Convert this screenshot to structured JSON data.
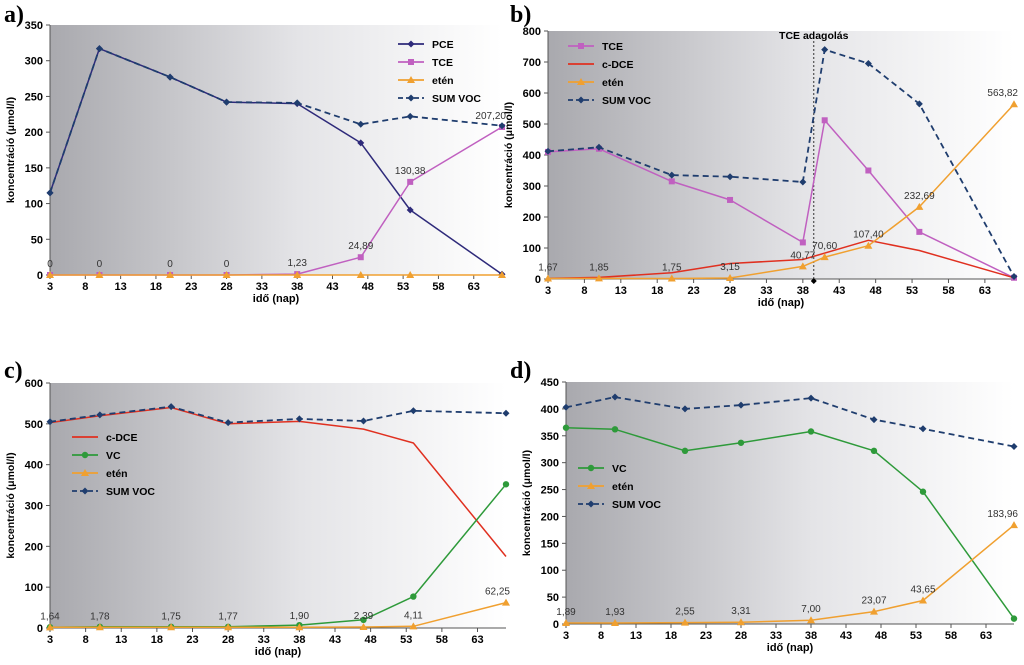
{
  "chart_data": [
    {
      "panel": "a)",
      "type": "line",
      "x": [
        3,
        10,
        20,
        28,
        38,
        47,
        54,
        67
      ],
      "xticks": [
        3,
        8,
        13,
        18,
        23,
        28,
        33,
        38,
        43,
        48,
        53,
        58,
        63
      ],
      "ylim": [
        0,
        350
      ],
      "yticks": [
        0,
        50,
        100,
        150,
        200,
        250,
        300,
        350
      ],
      "xlabel": "idő (nap)",
      "ylabel": "koncentráció (μmol/l)",
      "legend_pos": "top-right",
      "series": [
        {
          "name": "PCE",
          "color": "#2e2a7a",
          "marker": "diamond",
          "dash": false,
          "values": [
            115,
            317,
            277,
            242,
            240,
            185,
            91,
            1
          ]
        },
        {
          "name": "TCE",
          "color": "#c060c0",
          "marker": "square",
          "dash": false,
          "values": [
            0,
            0,
            0,
            0,
            1.23,
            24.89,
            130.38,
            207.2
          ]
        },
        {
          "name": "etén",
          "color": "#f0a030",
          "marker": "triangle",
          "dash": false,
          "values": [
            0,
            0,
            0,
            0,
            0,
            0,
            0,
            0
          ]
        },
        {
          "name": "SUM VOC",
          "color": "#1f3d6e",
          "marker": "diamond",
          "dash": true,
          "values": [
            115,
            317,
            277,
            242,
            241,
            211,
            222,
            209
          ]
        }
      ],
      "labels": [
        {
          "x": 3,
          "y": 0,
          "text": "0"
        },
        {
          "x": 10,
          "y": 0,
          "text": "0"
        },
        {
          "x": 20,
          "y": 0,
          "text": "0"
        },
        {
          "x": 28,
          "y": 0,
          "text": "0"
        },
        {
          "x": 38,
          "y": 1.23,
          "text": "1,23"
        },
        {
          "x": 47,
          "y": 24.89,
          "text": "24,89"
        },
        {
          "x": 54,
          "y": 130.38,
          "text": "130,38"
        },
        {
          "x": 67,
          "y": 207.2,
          "text": "207,20"
        }
      ]
    },
    {
      "panel": "b)",
      "type": "line",
      "x": [
        3,
        10,
        20,
        28,
        38,
        41,
        47,
        54,
        67
      ],
      "xticks": [
        3,
        8,
        13,
        18,
        23,
        28,
        33,
        38,
        43,
        48,
        53,
        58,
        63
      ],
      "ylim": [
        0,
        800
      ],
      "yticks": [
        0,
        100,
        200,
        300,
        400,
        500,
        600,
        700,
        800
      ],
      "xlabel": "idő (nap)",
      "ylabel": "koncentráció (μmol/l)",
      "legend_pos": "top-left",
      "annotation": {
        "text": "TCE adagolás",
        "x": 39.5
      },
      "series": [
        {
          "name": "TCE",
          "color": "#c060c0",
          "marker": "square",
          "dash": false,
          "x": [
            3,
            10,
            20,
            28,
            38,
            41,
            47,
            54,
            67
          ],
          "values": [
            410,
            420,
            315,
            255,
            118,
            512,
            350,
            152,
            4
          ]
        },
        {
          "name": "c-DCE",
          "color": "#e03020",
          "marker": "none",
          "dash": false,
          "x": [
            3,
            10,
            20,
            28,
            38,
            47,
            54,
            67
          ],
          "values": [
            2,
            5,
            20,
            50,
            63,
            125,
            92,
            4
          ]
        },
        {
          "name": "etén",
          "color": "#f0a030",
          "marker": "triangle",
          "dash": false,
          "x": [
            3,
            10,
            20,
            28,
            38,
            41,
            47,
            54,
            67
          ],
          "values": [
            1.67,
            1.85,
            1.75,
            3.15,
            40.77,
            70.6,
            107.4,
            232.69,
            563.82
          ]
        },
        {
          "name": "SUM VOC",
          "color": "#1f3d6e",
          "marker": "diamond",
          "dash": true,
          "x": [
            3,
            10,
            20,
            28,
            38,
            41,
            47,
            54,
            67
          ],
          "values": [
            412,
            425,
            335,
            330,
            313,
            740,
            695,
            565,
            8
          ]
        }
      ],
      "labels": [
        {
          "x": 3,
          "y": 1.67,
          "text": "1,67"
        },
        {
          "x": 10,
          "y": 1.85,
          "text": "1,85"
        },
        {
          "x": 20,
          "y": 1.75,
          "text": "1,75"
        },
        {
          "x": 28,
          "y": 3.15,
          "text": "3,15"
        },
        {
          "x": 38,
          "y": 40.77,
          "text": "40,77"
        },
        {
          "x": 41,
          "y": 70.6,
          "text": "70,60"
        },
        {
          "x": 47,
          "y": 107.4,
          "text": "107,40"
        },
        {
          "x": 54,
          "y": 232.69,
          "text": "232,69"
        },
        {
          "x": 67,
          "y": 563.82,
          "text": "563,82"
        }
      ]
    },
    {
      "panel": "c)",
      "type": "line",
      "x": [
        3,
        10,
        20,
        28,
        38,
        47,
        54,
        67
      ],
      "xticks": [
        3,
        8,
        13,
        18,
        23,
        28,
        33,
        38,
        43,
        48,
        53,
        58,
        63
      ],
      "ylim": [
        0,
        600
      ],
      "yticks": [
        0,
        100,
        200,
        300,
        400,
        500,
        600
      ],
      "xlabel": "idő (nap)",
      "ylabel": "koncentráció (μmol/l)",
      "legend_pos": "middle-left",
      "series": [
        {
          "name": "c-DCE",
          "color": "#e03020",
          "marker": "none",
          "dash": false,
          "values": [
            503,
            520,
            540,
            500,
            506,
            487,
            453,
            175
          ]
        },
        {
          "name": "VC",
          "color": "#2e9a3a",
          "marker": "circle",
          "dash": false,
          "values": [
            2,
            3,
            3,
            3,
            7,
            20,
            77,
            352
          ]
        },
        {
          "name": "etén",
          "color": "#f0a030",
          "marker": "triangle",
          "dash": false,
          "values": [
            1.64,
            1.78,
            1.75,
            1.77,
            1.9,
            2.39,
            4.11,
            62.25
          ]
        },
        {
          "name": "SUM VOC",
          "color": "#1f3d6e",
          "marker": "diamond",
          "dash": true,
          "values": [
            505,
            522,
            542,
            503,
            512,
            507,
            532,
            526
          ]
        }
      ],
      "labels": [
        {
          "x": 3,
          "y": 1.64,
          "text": "1,64"
        },
        {
          "x": 10,
          "y": 1.78,
          "text": "1,78"
        },
        {
          "x": 20,
          "y": 1.75,
          "text": "1,75"
        },
        {
          "x": 28,
          "y": 1.77,
          "text": "1,77"
        },
        {
          "x": 38,
          "y": 1.9,
          "text": "1,90"
        },
        {
          "x": 47,
          "y": 2.39,
          "text": "2,39"
        },
        {
          "x": 54,
          "y": 4.11,
          "text": "4,11"
        },
        {
          "x": 67,
          "y": 62.25,
          "text": "62,25"
        }
      ]
    },
    {
      "panel": "d)",
      "type": "line",
      "x": [
        3,
        10,
        20,
        28,
        38,
        47,
        54,
        67
      ],
      "xticks": [
        3,
        8,
        13,
        18,
        23,
        28,
        33,
        38,
        43,
        48,
        53,
        58,
        63
      ],
      "ylim": [
        0,
        450
      ],
      "yticks": [
        0,
        50,
        100,
        150,
        200,
        250,
        300,
        350,
        400,
        450
      ],
      "xlabel": "idő (nap)",
      "ylabel": "koncentráció (μmol/l)",
      "legend_pos": "middle-left",
      "series": [
        {
          "name": "VC",
          "color": "#2e9a3a",
          "marker": "circle",
          "dash": false,
          "values": [
            365,
            362,
            322,
            337,
            358,
            322,
            246,
            10
          ]
        },
        {
          "name": "etén",
          "color": "#f0a030",
          "marker": "triangle",
          "dash": false,
          "values": [
            1.89,
            1.93,
            2.55,
            3.31,
            7.0,
            23.07,
            43.65,
            183.96
          ]
        },
        {
          "name": "SUM VOC",
          "color": "#1f3d6e",
          "marker": "diamond",
          "dash": true,
          "values": [
            403,
            422,
            400,
            407,
            420,
            380,
            363,
            330
          ]
        }
      ],
      "labels": [
        {
          "x": 3,
          "y": 1.89,
          "text": "1,89"
        },
        {
          "x": 10,
          "y": 1.93,
          "text": "1,93"
        },
        {
          "x": 20,
          "y": 2.55,
          "text": "2,55"
        },
        {
          "x": 28,
          "y": 3.31,
          "text": "3,31"
        },
        {
          "x": 38,
          "y": 7.0,
          "text": "7,00"
        },
        {
          "x": 47,
          "y": 23.07,
          "text": "23,07"
        },
        {
          "x": 54,
          "y": 43.65,
          "text": "43,65"
        },
        {
          "x": 67,
          "y": 183.96,
          "text": "183,96"
        }
      ]
    }
  ]
}
